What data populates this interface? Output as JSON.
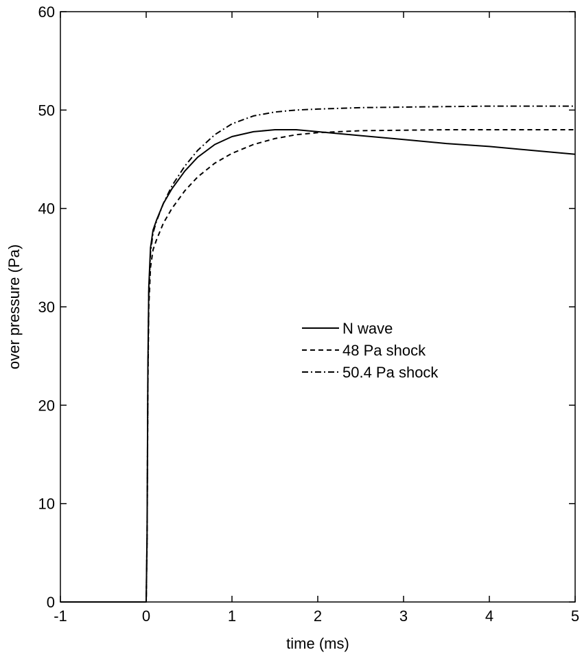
{
  "chart_data": {
    "type": "line",
    "xlabel": "time (ms)",
    "ylabel": "over pressure (Pa)",
    "xlim": [
      -1,
      5
    ],
    "ylim": [
      0,
      60
    ],
    "xticks": [
      -1,
      0,
      1,
      2,
      3,
      4,
      5
    ],
    "yticks": [
      0,
      10,
      20,
      30,
      40,
      50,
      60
    ],
    "grid": false,
    "legend_position": "center-right",
    "series": [
      {
        "name": "N wave",
        "style": "solid",
        "x": [
          -1,
          0,
          0.01,
          0.02,
          0.03,
          0.05,
          0.08,
          0.12,
          0.2,
          0.3,
          0.45,
          0.6,
          0.8,
          1.0,
          1.25,
          1.5,
          1.75,
          2.0,
          2.5,
          3.0,
          3.5,
          4.0,
          4.5,
          5.0
        ],
        "y": [
          0,
          0,
          7,
          24,
          32,
          36,
          37.8,
          38.8,
          40.5,
          42,
          43.8,
          45.2,
          46.5,
          47.3,
          47.8,
          48,
          48,
          47.8,
          47.4,
          47,
          46.6,
          46.3,
          45.9,
          45.5
        ]
      },
      {
        "name": "48 Pa shock",
        "style": "dashed",
        "x": [
          -1,
          0,
          0.01,
          0.02,
          0.03,
          0.05,
          0.08,
          0.12,
          0.2,
          0.3,
          0.45,
          0.6,
          0.8,
          1.0,
          1.25,
          1.5,
          1.75,
          2.0,
          2.5,
          3.0,
          3.5,
          4.0,
          4.5,
          5.0
        ],
        "y": [
          0,
          0,
          6,
          22,
          30,
          34,
          35.8,
          36.8,
          38.5,
          40,
          41.8,
          43.2,
          44.6,
          45.6,
          46.5,
          47.1,
          47.5,
          47.7,
          47.9,
          47.95,
          48,
          48,
          48,
          48
        ]
      },
      {
        "name": "50.4 Pa shock",
        "style": "dashdot",
        "x": [
          -1,
          0,
          0.01,
          0.02,
          0.03,
          0.05,
          0.08,
          0.12,
          0.2,
          0.3,
          0.45,
          0.6,
          0.8,
          1.0,
          1.25,
          1.5,
          1.75,
          2.0,
          2.5,
          3.0,
          3.5,
          4.0,
          4.5,
          5.0
        ],
        "y": [
          0,
          0,
          6.5,
          23,
          31.5,
          35.5,
          37.5,
          38.7,
          40.5,
          42.3,
          44.3,
          45.9,
          47.5,
          48.6,
          49.4,
          49.8,
          50,
          50.1,
          50.25,
          50.3,
          50.35,
          50.4,
          50.4,
          50.4
        ]
      }
    ]
  }
}
